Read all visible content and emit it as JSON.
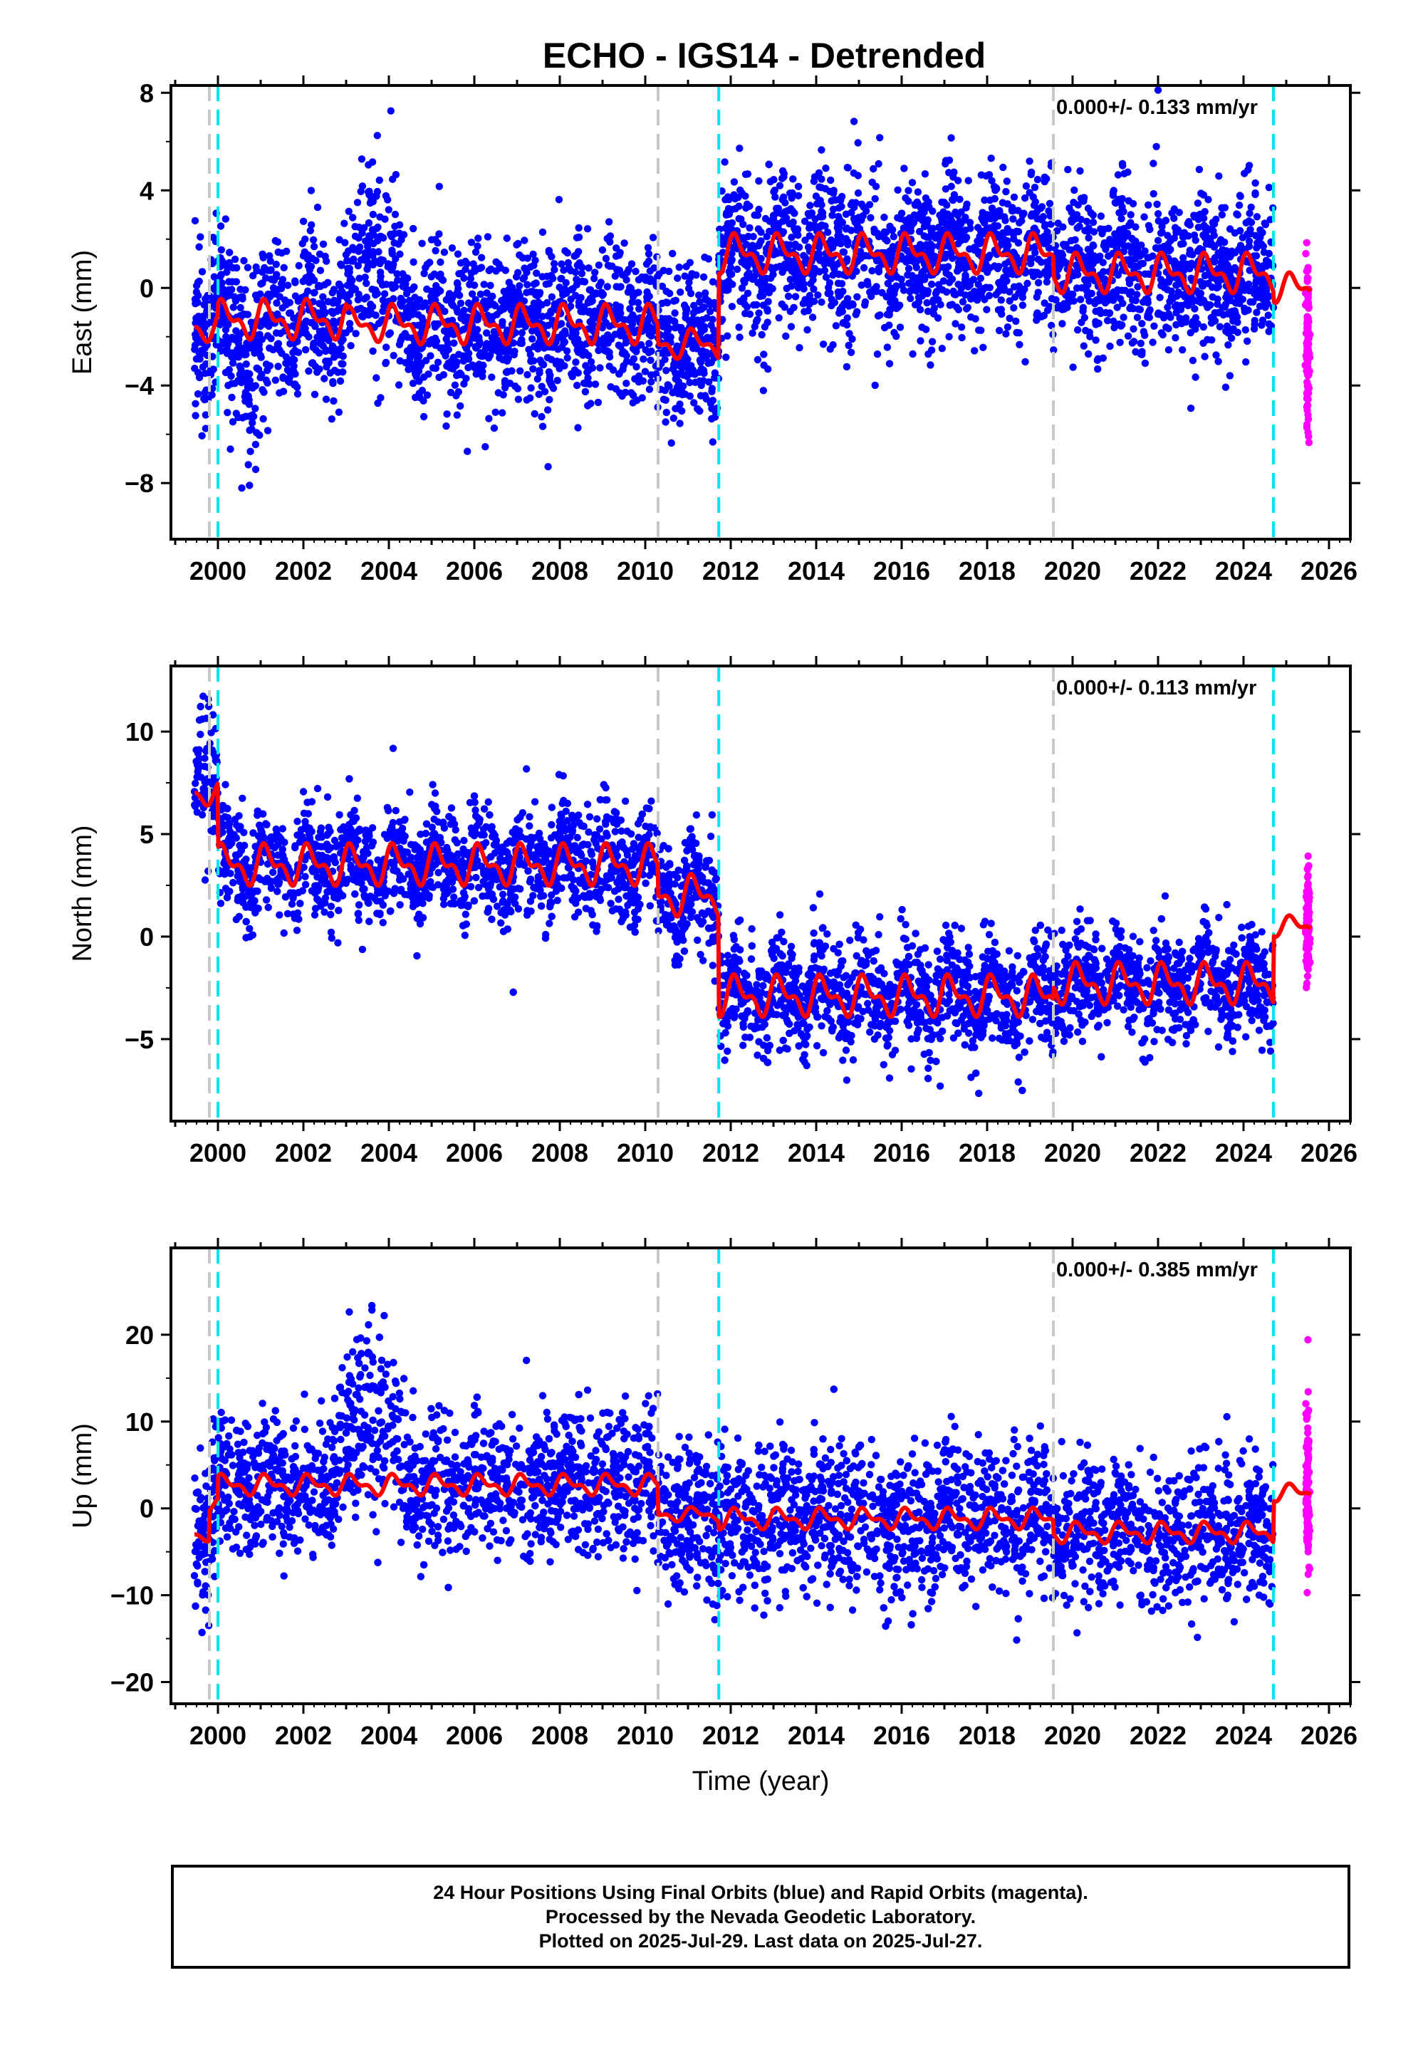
{
  "title": "ECHO - IGS14 - Detrended",
  "xlabel": "Time (year)",
  "colors": {
    "final": "#0000ff",
    "rapid": "#ff00ff",
    "model": "#ff0000",
    "eq_line": "#00e5ee",
    "equip_line": "#c8c8c8"
  },
  "footer": {
    "line1": "24 Hour Positions Using Final Orbits (blue) and Rapid Orbits (magenta).",
    "line2": "Processed by the Nevada Geodetic Laboratory.",
    "line3": "Plotted on 2025-Jul-29. Last data on 2025-Jul-27."
  },
  "chart_data": [
    {
      "type": "scatter",
      "panel": "east",
      "ylabel": "East (mm)",
      "rate_text": "0.000+/- 0.133 mm/yr",
      "xlim": [
        1998.9,
        2026.5
      ],
      "ylim": [
        -10.3,
        8.3
      ],
      "x_ticks": [
        2000,
        2002,
        2004,
        2006,
        2008,
        2010,
        2012,
        2014,
        2016,
        2018,
        2020,
        2022,
        2024,
        2026
      ],
      "x_tick_labels": [
        "2000",
        "2002",
        "2004",
        "2006",
        "2008",
        "2010",
        "2012",
        "2014",
        "2016",
        "2018",
        "2020",
        "2022",
        "2024",
        "2026"
      ],
      "y_ticks": [
        -8,
        -4,
        0,
        4,
        8
      ],
      "y_tick_labels": [
        "−8",
        "−4",
        "0",
        "4",
        "8"
      ],
      "data_range": [
        1999.45,
        2024.7
      ],
      "rapid_range": [
        2024.72,
        2025.57
      ],
      "scatter_sigma": 1.6,
      "rapid_sigma": 1.7,
      "rapid_offset": -2.5,
      "segments": [
        {
          "start": 1999.45,
          "end": 2000.0,
          "offset": -1.6,
          "amplitude": 0.6
        },
        {
          "start": 2000.0,
          "end": 2003.0,
          "offset": -1.3,
          "amplitude": 0.8
        },
        {
          "start": 2003.0,
          "end": 2004.0,
          "offset": -1.5,
          "amplitude": 0.7
        },
        {
          "start": 2004.0,
          "end": 2010.3,
          "offset": -1.5,
          "amplitude": 0.8
        },
        {
          "start": 2010.3,
          "end": 2011.72,
          "offset": -2.3,
          "amplitude": 0.6
        },
        {
          "start": 2011.72,
          "end": 2019.55,
          "offset": 1.4,
          "amplitude": 0.8
        },
        {
          "start": 2019.55,
          "end": 2024.7,
          "offset": 0.6,
          "amplitude": 0.8
        },
        {
          "start": 2024.7,
          "end": 2025.57,
          "offset": 0.0,
          "amplitude": 0.6
        }
      ],
      "blobs": [
        {
          "start": 2002.9,
          "end": 2004.4,
          "shift": 3.0,
          "spread": 1.6
        },
        {
          "start": 2000.1,
          "end": 2001.3,
          "shift": -1.5,
          "spread": 1.6
        }
      ],
      "vlines": [
        {
          "x": 1999.8,
          "kind": "equip"
        },
        {
          "x": 2000.0,
          "kind": "eq"
        },
        {
          "x": 2010.3,
          "kind": "equip"
        },
        {
          "x": 2011.72,
          "kind": "eq"
        },
        {
          "x": 2019.55,
          "kind": "equip"
        },
        {
          "x": 2024.7,
          "kind": "eq"
        }
      ]
    },
    {
      "type": "scatter",
      "panel": "north",
      "ylabel": "North (mm)",
      "rate_text": "0.000+/- 0.113 mm/yr",
      "xlim": [
        1998.9,
        2026.5
      ],
      "ylim": [
        -9.0,
        13.2
      ],
      "x_ticks": [
        2000,
        2002,
        2004,
        2006,
        2008,
        2010,
        2012,
        2014,
        2016,
        2018,
        2020,
        2022,
        2024,
        2026
      ],
      "x_tick_labels": [
        "2000",
        "2002",
        "2004",
        "2006",
        "2008",
        "2010",
        "2012",
        "2014",
        "2016",
        "2018",
        "2020",
        "2022",
        "2024",
        "2026"
      ],
      "y_ticks": [
        -5,
        0,
        5,
        10
      ],
      "y_tick_labels": [
        "−5",
        "0",
        "5",
        "10"
      ],
      "data_range": [
        1999.45,
        2024.7
      ],
      "rapid_range": [
        2024.72,
        2025.57
      ],
      "scatter_sigma": 1.3,
      "rapid_sigma": 1.5,
      "rapid_offset": 0.3,
      "segments": [
        {
          "start": 1999.45,
          "end": 2000.0,
          "offset": 7.0,
          "amplitude": 0.6
        },
        {
          "start": 2000.0,
          "end": 2010.3,
          "offset": 3.5,
          "amplitude": 1.0
        },
        {
          "start": 2010.3,
          "end": 2011.72,
          "offset": 2.0,
          "amplitude": 1.0
        },
        {
          "start": 2011.72,
          "end": 2019.55,
          "offset": -2.9,
          "amplitude": 1.0
        },
        {
          "start": 2019.55,
          "end": 2024.7,
          "offset": -2.3,
          "amplitude": 1.0
        },
        {
          "start": 2024.7,
          "end": 2025.57,
          "offset": 0.5,
          "amplitude": 0.5
        }
      ],
      "blobs": [
        {
          "start": 1999.45,
          "end": 2000.0,
          "shift": 2.0,
          "spread": 1.8
        }
      ],
      "vlines": [
        {
          "x": 1999.8,
          "kind": "equip"
        },
        {
          "x": 2000.0,
          "kind": "eq"
        },
        {
          "x": 2010.3,
          "kind": "equip"
        },
        {
          "x": 2011.72,
          "kind": "eq"
        },
        {
          "x": 2019.55,
          "kind": "equip"
        },
        {
          "x": 2024.7,
          "kind": "eq"
        }
      ]
    },
    {
      "type": "scatter",
      "panel": "up",
      "ylabel": "Up (mm)",
      "rate_text": "0.000+/- 0.385 mm/yr",
      "xlim": [
        1998.9,
        2026.5
      ],
      "ylim": [
        -22.5,
        30.0
      ],
      "x_ticks": [
        2000,
        2002,
        2004,
        2006,
        2008,
        2010,
        2012,
        2014,
        2016,
        2018,
        2020,
        2022,
        2024,
        2026
      ],
      "x_tick_labels": [
        "2000",
        "2002",
        "2004",
        "2006",
        "2008",
        "2010",
        "2012",
        "2014",
        "2016",
        "2018",
        "2020",
        "2022",
        "2024",
        "2026"
      ],
      "y_ticks": [
        -20,
        -10,
        0,
        10,
        20
      ],
      "y_tick_labels": [
        "−20",
        "−10",
        "0",
        "10",
        "20"
      ],
      "data_range": [
        1999.45,
        2024.7
      ],
      "rapid_range": [
        2024.72,
        2025.57
      ],
      "scatter_sigma": 4.2,
      "rapid_sigma": 5.0,
      "rapid_offset": 1.5,
      "segments": [
        {
          "start": 1999.45,
          "end": 1999.8,
          "offset": -3.0,
          "amplitude": 0.8
        },
        {
          "start": 1999.8,
          "end": 2000.0,
          "offset": 0.5,
          "amplitude": 0.8
        },
        {
          "start": 2000.0,
          "end": 2010.3,
          "offset": 2.7,
          "amplitude": 1.2
        },
        {
          "start": 2010.3,
          "end": 2011.72,
          "offset": -0.7,
          "amplitude": 0.8
        },
        {
          "start": 2011.72,
          "end": 2019.55,
          "offset": -1.2,
          "amplitude": 1.2
        },
        {
          "start": 2019.55,
          "end": 2024.7,
          "offset": -2.8,
          "amplitude": 1.2
        },
        {
          "start": 2024.7,
          "end": 2025.57,
          "offset": 1.8,
          "amplitude": 1.0
        }
      ],
      "blobs": [
        {
          "start": 2002.5,
          "end": 2004.6,
          "shift": 8.0,
          "spread": 5.0
        }
      ],
      "vlines": [
        {
          "x": 1999.8,
          "kind": "equip"
        },
        {
          "x": 2000.0,
          "kind": "eq"
        },
        {
          "x": 2010.3,
          "kind": "equip"
        },
        {
          "x": 2011.72,
          "kind": "eq"
        },
        {
          "x": 2019.55,
          "kind": "equip"
        },
        {
          "x": 2024.7,
          "kind": "eq"
        }
      ]
    }
  ]
}
